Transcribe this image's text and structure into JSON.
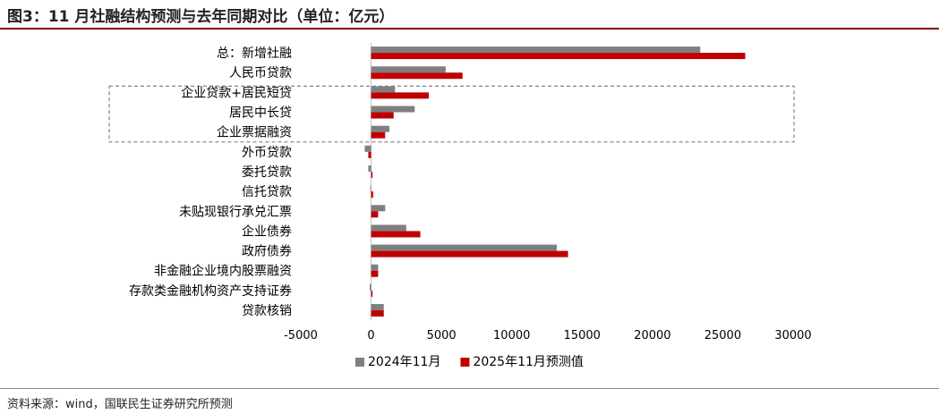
{
  "header": {
    "title": "图3：11 月社融结构预测与去年同期对比（单位：亿元）"
  },
  "footer": {
    "source": "资料来源：wind，国联民生证券研究所预测"
  },
  "chart_data": {
    "type": "bar",
    "orientation": "horizontal",
    "categories": [
      "总：新增社融",
      "人民币贷款",
      "企业贷款+居民短贷",
      "居民中长贷",
      "企业票据融资",
      "外币贷款",
      "委托贷款",
      "信托贷款",
      "未贴现银行承兑汇票",
      "企业债券",
      "政府债券",
      "非金融企业境内股票融资",
      "存款类金融机构资产支持证券",
      "贷款核销"
    ],
    "series": [
      {
        "name": "2024年11月",
        "color": "#7f7f7f",
        "values": [
          23400,
          5300,
          1700,
          3100,
          1300,
          -450,
          -200,
          -50,
          1000,
          2500,
          13200,
          500,
          -100,
          900
        ]
      },
      {
        "name": "2025年11月预测值",
        "color": "#c00000",
        "values": [
          26600,
          6500,
          4100,
          1600,
          1000,
          -200,
          100,
          150,
          500,
          3500,
          14000,
          500,
          100,
          900
        ]
      }
    ],
    "xlim": [
      -5000,
      30000
    ],
    "xticks": [
      "-5000",
      "0",
      "5000",
      "10000",
      "15000",
      "20000",
      "25000",
      "30000"
    ],
    "legend": "bottom",
    "grid": false,
    "highlight_box_categories": [
      "企业贷款+居民短贷",
      "居民中长贷",
      "企业票据融资"
    ]
  }
}
